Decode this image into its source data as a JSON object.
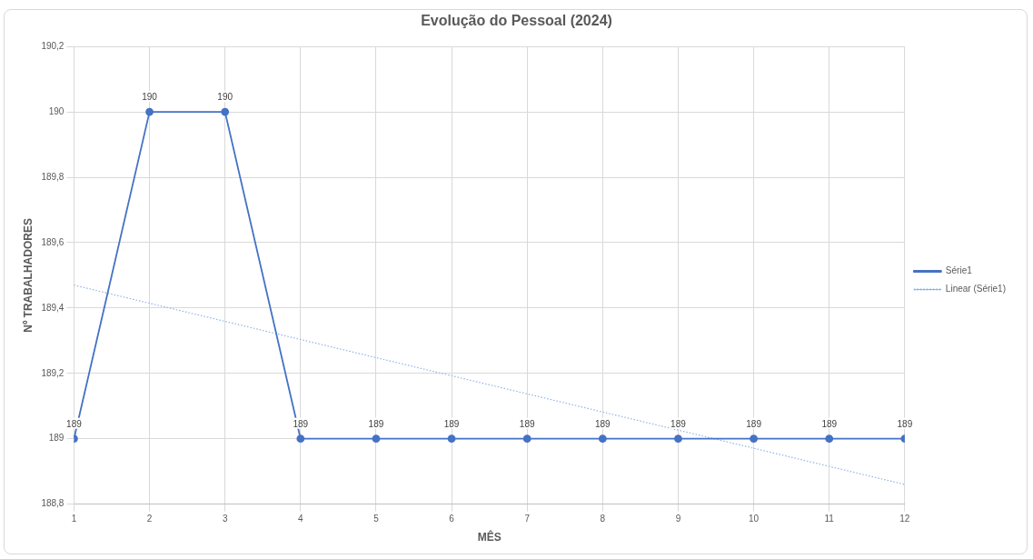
{
  "chart_data": {
    "type": "line",
    "title": "Evolução do Pessoal (2024)",
    "xlabel": "MÊS",
    "ylabel": "Nº TRABALHADORES",
    "x": [
      1,
      2,
      3,
      4,
      5,
      6,
      7,
      8,
      9,
      10,
      11,
      12
    ],
    "series": [
      {
        "name": "Série1",
        "color": "#4472c4",
        "values": [
          189,
          190,
          190,
          189,
          189,
          189,
          189,
          189,
          189,
          189,
          189,
          189
        ],
        "value_labels": [
          "189",
          "190",
          "190",
          "189",
          "189",
          "189",
          "189",
          "189",
          "189",
          "189",
          "189",
          "189"
        ],
        "marker": "circle",
        "line_style": "solid"
      },
      {
        "name": "Linear (Série1)",
        "color": "#8eb4e3",
        "x": [
          1,
          12
        ],
        "values": [
          189.47,
          188.86
        ],
        "marker": "none",
        "line_style": "dotted"
      }
    ],
    "xlim": [
      1,
      12
    ],
    "xticks": [
      1,
      2,
      3,
      4,
      5,
      6,
      7,
      8,
      9,
      10,
      11,
      12
    ],
    "ylim": [
      188.8,
      190.2
    ],
    "yticks": [
      {
        "value": 188.8,
        "label": "188,8"
      },
      189,
      {
        "value": 189.2,
        "label": "189,2"
      },
      {
        "value": 189.4,
        "label": "189,4"
      },
      {
        "value": 189.6,
        "label": "189,6"
      },
      {
        "value": 189.8,
        "label": "189,8"
      },
      190,
      {
        "value": 190.2,
        "label": "190,2"
      }
    ],
    "grid": true,
    "legend": "right"
  }
}
